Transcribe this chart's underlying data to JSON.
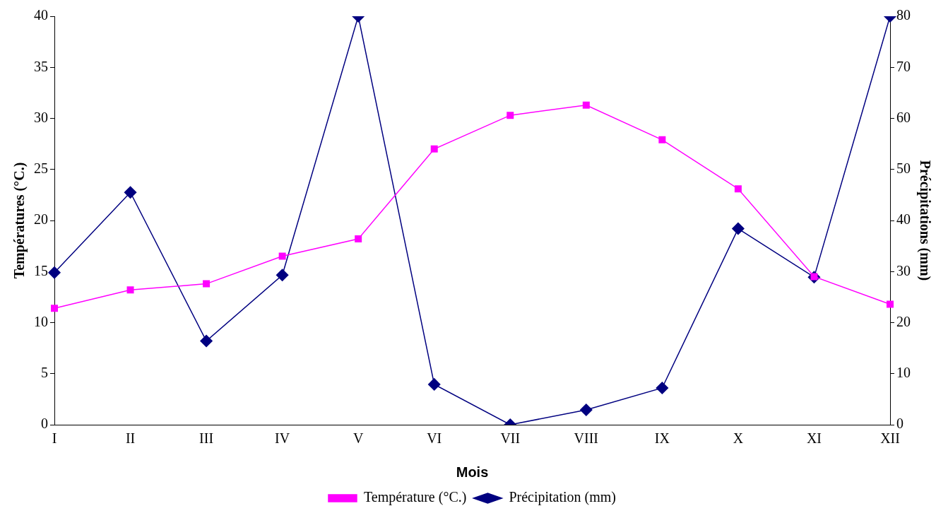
{
  "chart_data": {
    "type": "line",
    "xlabel": "Mois",
    "ylabel": "Températures (°C.)",
    "y2label": "Précipitations (mm)",
    "categories": [
      "I",
      "II",
      "III",
      "IV",
      "V",
      "VI",
      "VII",
      "VIII",
      "IX",
      "X",
      "XI",
      "XII"
    ],
    "series": [
      {
        "name": "Température (°C.)",
        "color": "#ff00ff",
        "marker": "square",
        "values": [
          11.4,
          13.2,
          13.8,
          16.5,
          18.2,
          27.0,
          30.3,
          31.3,
          27.9,
          23.1,
          14.5,
          11.8
        ]
      },
      {
        "name": "Précipitation (mm)",
        "color": "#000080",
        "marker": "diamond",
        "axis": "y2",
        "values": [
          29.8,
          45.5,
          16.4,
          29.3,
          80,
          7.9,
          0,
          2.9,
          7.2,
          38.4,
          28.9,
          80
        ]
      }
    ],
    "ylim": [
      0,
      40
    ],
    "yticks": [
      0,
      5,
      10,
      15,
      20,
      25,
      30,
      35,
      40
    ],
    "y2lim": [
      0,
      80
    ],
    "y2ticks": [
      0,
      10,
      20,
      30,
      40,
      50,
      60,
      70,
      80
    ],
    "grid": false,
    "legend": "bottom"
  }
}
